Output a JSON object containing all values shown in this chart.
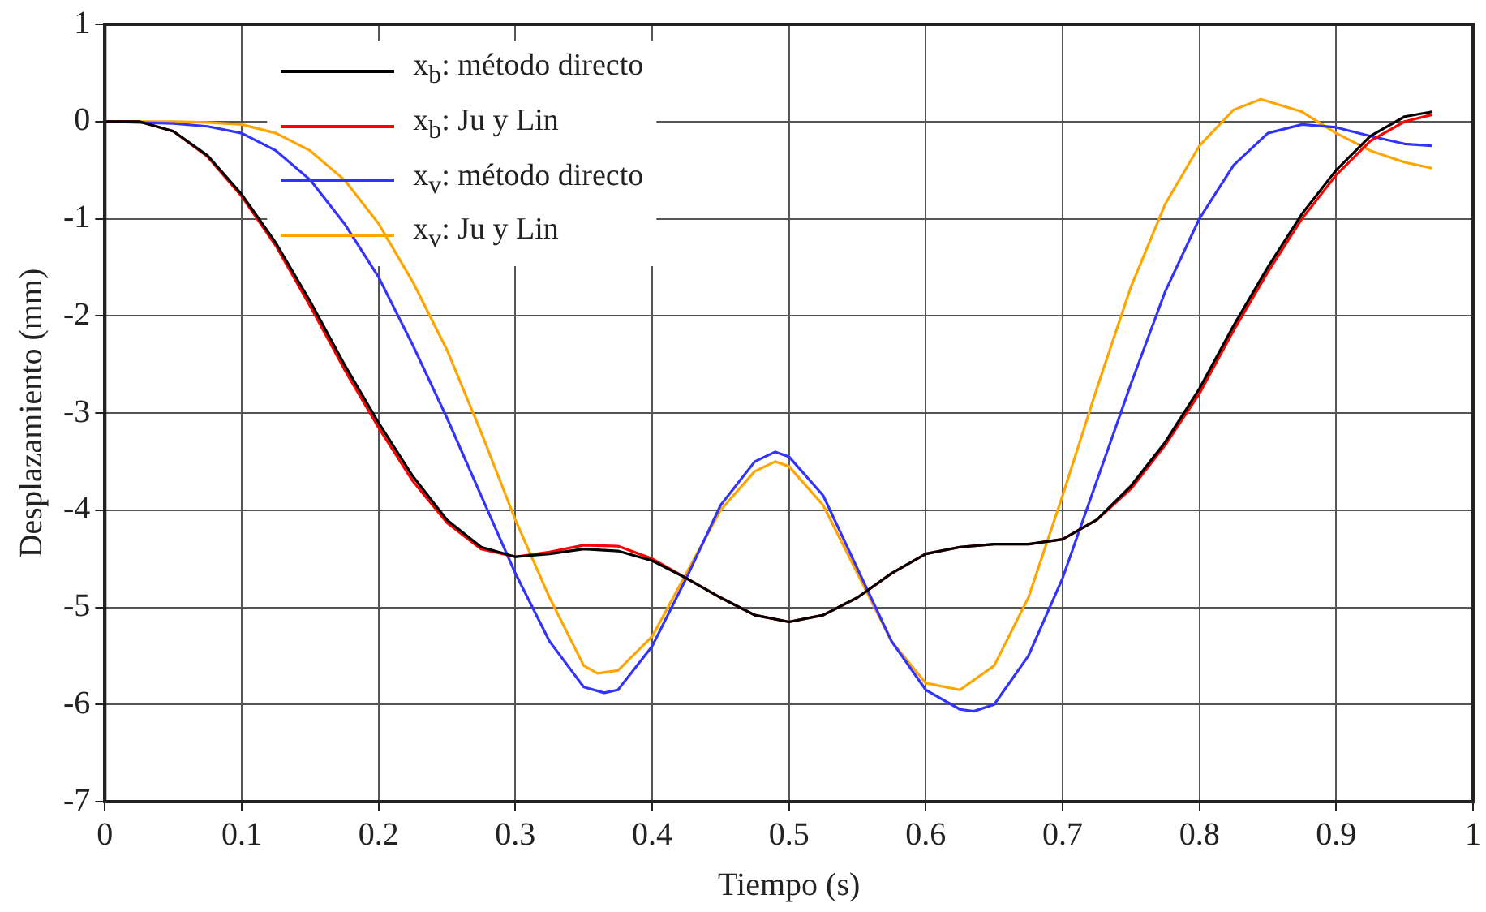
{
  "chart_data": {
    "type": "line",
    "xlabel": "Tiempo (s)",
    "ylabel": "Desplazamiento (mm)",
    "xlim": [
      0,
      1
    ],
    "ylim": [
      -7,
      1
    ],
    "xticks": [
      0,
      0.1,
      0.2,
      0.3,
      0.4,
      0.5,
      0.6,
      0.7,
      0.8,
      0.9,
      1
    ],
    "yticks": [
      -7,
      -6,
      -5,
      -4,
      -3,
      -2,
      -1,
      0,
      1
    ],
    "grid": true,
    "legend": "top left",
    "series": [
      {
        "name": "x$_{b}$: método directo",
        "color": "#000000",
        "x": [
          0,
          0.025,
          0.05,
          0.075,
          0.1,
          0.125,
          0.15,
          0.175,
          0.2,
          0.225,
          0.25,
          0.275,
          0.3,
          0.325,
          0.35,
          0.375,
          0.4,
          0.425,
          0.45,
          0.475,
          0.5,
          0.525,
          0.55,
          0.575,
          0.6,
          0.625,
          0.65,
          0.675,
          0.7,
          0.725,
          0.75,
          0.775,
          0.8,
          0.825,
          0.85,
          0.875,
          0.9,
          0.925,
          0.95,
          0.97
        ],
        "values": [
          0,
          0,
          -0.1,
          -0.35,
          -0.75,
          -1.25,
          -1.85,
          -2.5,
          -3.1,
          -3.65,
          -4.1,
          -4.38,
          -4.48,
          -4.45,
          -4.4,
          -4.42,
          -4.52,
          -4.7,
          -4.9,
          -5.08,
          -5.15,
          -5.08,
          -4.9,
          -4.65,
          -4.45,
          -4.38,
          -4.35,
          -4.35,
          -4.3,
          -4.1,
          -3.75,
          -3.3,
          -2.75,
          -2.1,
          -1.5,
          -0.95,
          -0.5,
          -0.15,
          0.05,
          0.1
        ]
      },
      {
        "name": "x$_{b}$: Ju y Lin",
        "color": "#ff0000",
        "x": [
          0,
          0.025,
          0.05,
          0.075,
          0.1,
          0.125,
          0.15,
          0.175,
          0.2,
          0.225,
          0.25,
          0.275,
          0.3,
          0.325,
          0.35,
          0.375,
          0.4,
          0.425,
          0.45,
          0.475,
          0.5,
          0.525,
          0.55,
          0.575,
          0.6,
          0.625,
          0.65,
          0.675,
          0.7,
          0.725,
          0.75,
          0.775,
          0.8,
          0.825,
          0.85,
          0.875,
          0.9,
          0.925,
          0.95,
          0.97
        ],
        "values": [
          0,
          0,
          -0.1,
          -0.36,
          -0.77,
          -1.28,
          -1.9,
          -2.55,
          -3.15,
          -3.7,
          -4.13,
          -4.4,
          -4.48,
          -4.43,
          -4.36,
          -4.37,
          -4.5,
          -4.7,
          -4.9,
          -5.08,
          -5.15,
          -5.08,
          -4.9,
          -4.65,
          -4.45,
          -4.38,
          -4.35,
          -4.35,
          -4.3,
          -4.1,
          -3.78,
          -3.33,
          -2.8,
          -2.15,
          -1.55,
          -1.0,
          -0.55,
          -0.2,
          0.0,
          0.07
        ]
      },
      {
        "name": "x$_{v}$: método directo",
        "color": "#3333ff",
        "x": [
          0,
          0.05,
          0.075,
          0.1,
          0.125,
          0.15,
          0.175,
          0.2,
          0.225,
          0.25,
          0.275,
          0.3,
          0.325,
          0.35,
          0.365,
          0.375,
          0.4,
          0.425,
          0.45,
          0.475,
          0.49,
          0.5,
          0.525,
          0.55,
          0.575,
          0.6,
          0.625,
          0.635,
          0.65,
          0.675,
          0.7,
          0.725,
          0.75,
          0.775,
          0.8,
          0.825,
          0.85,
          0.875,
          0.9,
          0.925,
          0.95,
          0.97
        ],
        "values": [
          0,
          -0.02,
          -0.05,
          -0.12,
          -0.3,
          -0.6,
          -1.05,
          -1.6,
          -2.3,
          -3.05,
          -3.85,
          -4.65,
          -5.35,
          -5.82,
          -5.88,
          -5.85,
          -5.4,
          -4.7,
          -3.95,
          -3.5,
          -3.4,
          -3.45,
          -3.85,
          -4.6,
          -5.35,
          -5.85,
          -6.05,
          -6.07,
          -6.0,
          -5.5,
          -4.7,
          -3.7,
          -2.7,
          -1.75,
          -1.0,
          -0.45,
          -0.12,
          -0.03,
          -0.06,
          -0.15,
          -0.23,
          -0.25
        ]
      },
      {
        "name": "x$_{v}$: Ju y Lin",
        "color": "#ffa500",
        "x": [
          0,
          0.05,
          0.075,
          0.1,
          0.125,
          0.15,
          0.175,
          0.2,
          0.225,
          0.25,
          0.275,
          0.3,
          0.325,
          0.35,
          0.36,
          0.375,
          0.4,
          0.425,
          0.45,
          0.475,
          0.49,
          0.5,
          0.525,
          0.55,
          0.575,
          0.6,
          0.625,
          0.65,
          0.675,
          0.7,
          0.725,
          0.75,
          0.775,
          0.8,
          0.825,
          0.845,
          0.875,
          0.9,
          0.925,
          0.95,
          0.97
        ],
        "values": [
          0,
          0,
          -0.01,
          -0.03,
          -0.12,
          -0.3,
          -0.6,
          -1.05,
          -1.65,
          -2.35,
          -3.2,
          -4.1,
          -4.9,
          -5.6,
          -5.68,
          -5.65,
          -5.3,
          -4.65,
          -4.0,
          -3.6,
          -3.5,
          -3.55,
          -3.95,
          -4.65,
          -5.35,
          -5.78,
          -5.85,
          -5.6,
          -4.9,
          -3.85,
          -2.75,
          -1.7,
          -0.85,
          -0.25,
          0.12,
          0.23,
          0.1,
          -0.12,
          -0.3,
          -0.42,
          -0.48
        ]
      }
    ]
  }
}
